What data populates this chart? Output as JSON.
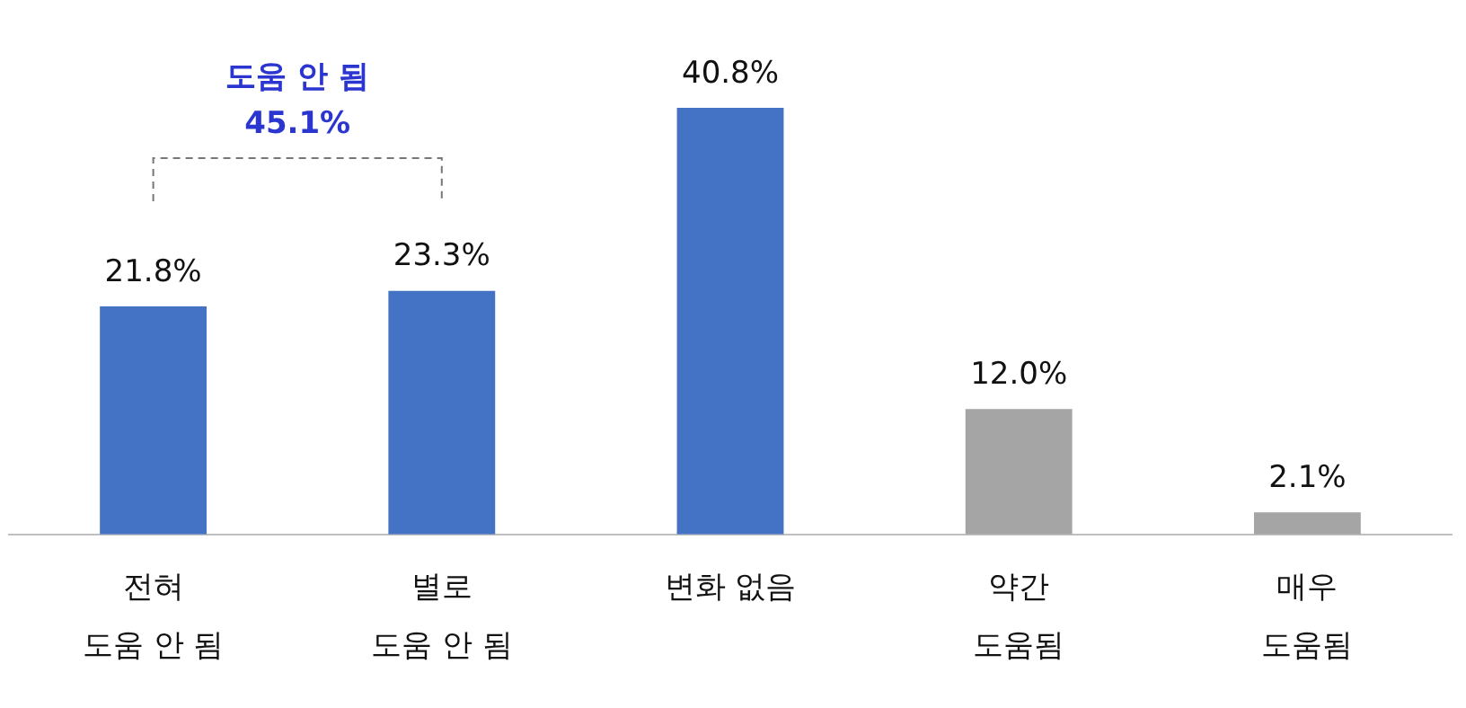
{
  "chart_data": {
    "type": "bar",
    "categories": [
      "전혀\n도움 안 됨",
      "별로\n도움 안 됨",
      "변화 없음",
      "약간\n도움됨",
      "매우\n도움됨"
    ],
    "values": [
      21.8,
      23.3,
      40.8,
      12.0,
      2.1
    ],
    "value_labels": [
      "21.8%",
      "23.3%",
      "40.8%",
      "12.0%",
      "2.1%"
    ],
    "colors": [
      "#4472c4",
      "#4472c4",
      "#4472c4",
      "#a5a5a5",
      "#a5a5a5"
    ],
    "annotations": [
      "도움 안 됨\n45.1%"
    ],
    "grid": false,
    "legend": false,
    "tick_labels": "x"
  }
}
